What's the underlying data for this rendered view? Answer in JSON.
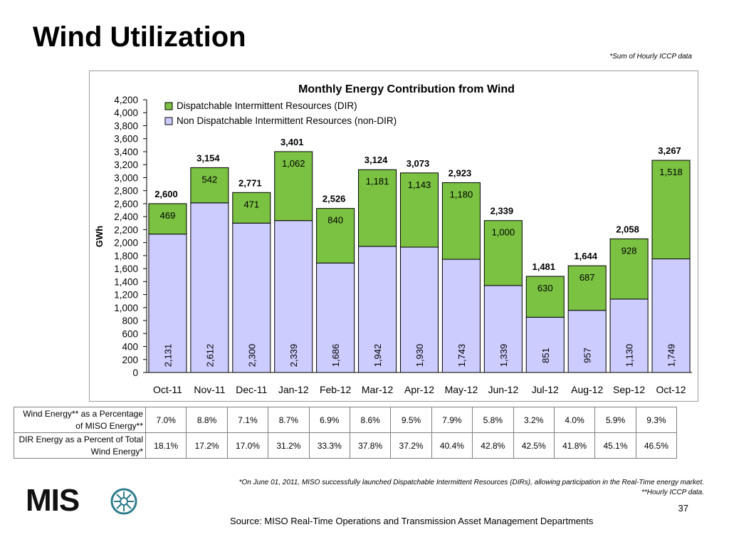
{
  "page": {
    "title": "Wind Utilization",
    "note_top": "*Sum of Hourly ICCP data",
    "footnote_line1": "*On June 01, 2011, MISO successfully launched Dispatchable Intermittent Resources (DIRs), allowing participation in the Real-Time energy market.",
    "footnote_line2": "**Hourly ICCP data.",
    "page_number": "37",
    "source": "Source: MISO Real-Time Operations and Transmission Asset Management Departments",
    "logo_text": "MIS",
    "logo_color": "#2e7d8c"
  },
  "chart_data": {
    "type": "bar",
    "stacked": true,
    "title": "Monthly Energy Contribution from Wind",
    "xlabel": "",
    "ylabel": "GWh",
    "ylim": [
      0,
      4200
    ],
    "yticks": [
      "0",
      "200",
      "400",
      "600",
      "800",
      "1,000",
      "1,200",
      "1,400",
      "1,600",
      "1,800",
      "2,000",
      "2,200",
      "2,400",
      "2,600",
      "2,800",
      "3,000",
      "3,200",
      "3,400",
      "3,600",
      "3,800",
      "4,000",
      "4,200"
    ],
    "legend_position": "top-left",
    "grid": false,
    "categories": [
      "Oct-11",
      "Nov-11",
      "Dec-11",
      "Jan-12",
      "Feb-12",
      "Mar-12",
      "Apr-12",
      "May-12",
      "Jun-12",
      "Jul-12",
      "Aug-12",
      "Sep-12",
      "Oct-12"
    ],
    "series": [
      {
        "name": "Non Dispatchable Intermittent Resources (non-DIR)",
        "color": "#ccccff",
        "values": [
          2131,
          2612,
          2300,
          2339,
          1686,
          1942,
          1930,
          1743,
          1339,
          851,
          957,
          1130,
          1749
        ],
        "labels": [
          "2,131",
          "2,612",
          "2,300",
          "2,339",
          "1,686",
          "1,942",
          "1,930",
          "1,743",
          "1,339",
          "851",
          "957",
          "1,130",
          "1,749"
        ]
      },
      {
        "name": "Dispatchable Intermittent Resources (DIR)",
        "color": "#7bc142",
        "values": [
          469,
          542,
          471,
          1062,
          840,
          1181,
          1143,
          1180,
          1000,
          630,
          687,
          928,
          1518
        ],
        "labels": [
          "469",
          "542",
          "471",
          "1,062",
          "840",
          "1,181",
          "1,143",
          "1,180",
          "1,000",
          "630",
          "687",
          "928",
          "1,518"
        ]
      }
    ],
    "totals": [
      2600,
      3154,
      2771,
      3401,
      2526,
      3124,
      3073,
      2923,
      2339,
      1481,
      1644,
      2058,
      3267
    ],
    "total_labels": [
      "2,600",
      "3,154",
      "2,771",
      "3,401",
      "2,526",
      "3,124",
      "3,073",
      "2,923",
      "2,339",
      "1,481",
      "1,644",
      "2,058",
      "3,267"
    ]
  },
  "table": {
    "rows": [
      {
        "label_line1": "Wind Energy** as a Percentage",
        "label_line2": "of  MISO Energy**",
        "values": [
          "7.0%",
          "8.8%",
          "7.1%",
          "8.7%",
          "6.9%",
          "8.6%",
          "9.5%",
          "7.9%",
          "5.8%",
          "3.2%",
          "4.0%",
          "5.9%",
          "9.3%"
        ]
      },
      {
        "label_line1": "DIR Energy as a Percent of Total",
        "label_line2": "Wind Energy*",
        "values": [
          "18.1%",
          "17.2%",
          "17.0%",
          "31.2%",
          "33.3%",
          "37.8%",
          "37.2%",
          "40.4%",
          "42.8%",
          "42.5%",
          "41.8%",
          "45.1%",
          "46.5%"
        ]
      }
    ]
  }
}
